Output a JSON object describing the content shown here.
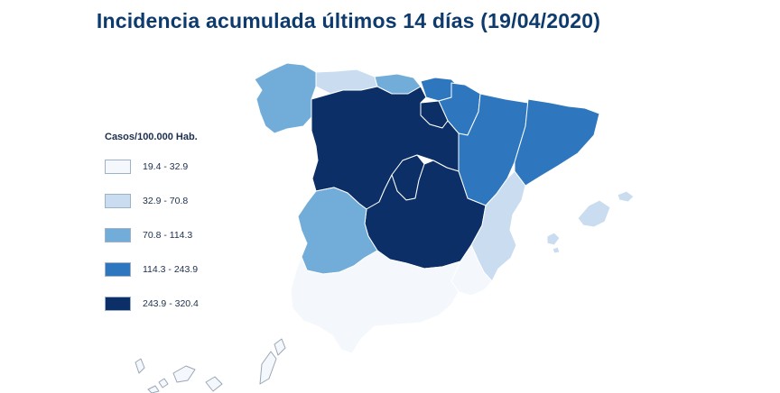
{
  "title": "Incidencia acumulada últimos 14 días (19/04/2020)",
  "legend": {
    "title": "Casos/100.000 Hab.",
    "items": [
      {
        "label": "19.4 - 32.9",
        "color": "#f4f8fc"
      },
      {
        "label": "32.9 - 70.8",
        "color": "#c9dcf0"
      },
      {
        "label": "70.8 - 114.3",
        "color": "#72acd9"
      },
      {
        "label": "114.3 - 243.9",
        "color": "#2e77be"
      },
      {
        "label": "243.9 - 320.4",
        "color": "#0b2f66"
      }
    ]
  }
}
